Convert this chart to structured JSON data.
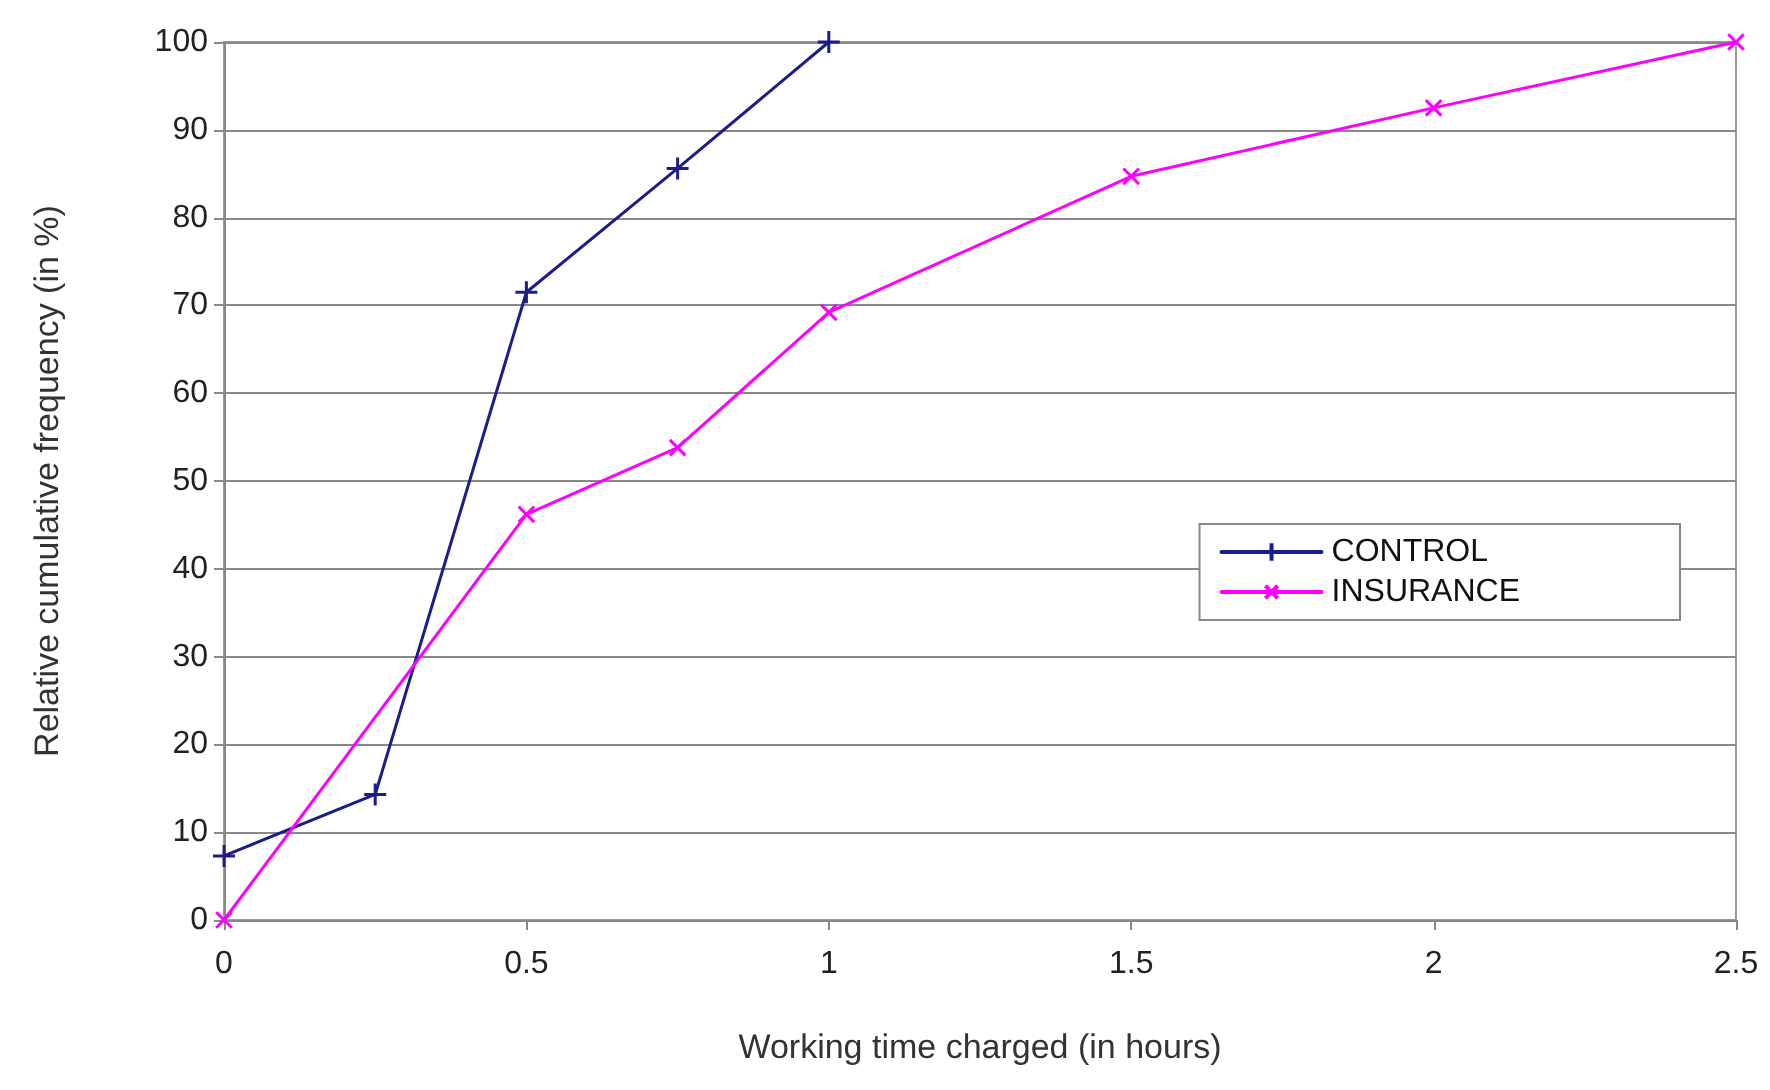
{
  "chart_data": {
    "type": "line",
    "xlabel": "Working time charged (in hours)",
    "ylabel": "Relative cumulative frequency (in %)",
    "xlim": [
      0,
      2.5
    ],
    "xticks": [
      0,
      0.5,
      1,
      1.5,
      2,
      2.5
    ],
    "ylim": [
      0,
      100
    ],
    "yticks": [
      0,
      10,
      20,
      30,
      40,
      50,
      60,
      70,
      80,
      90,
      100
    ],
    "grid": "y",
    "legend": "right",
    "marker": "cross",
    "line_style": "solid",
    "series": [
      {
        "name": "CONTROL",
        "color": "#1c1c8a",
        "x": [
          0,
          0.25,
          0.5,
          0.75,
          1
        ],
        "values": [
          7.3,
          14.3,
          71.5,
          85.6,
          100
        ]
      },
      {
        "name": "INSURANCE",
        "color": "#ff00ff",
        "x": [
          0,
          0.5,
          0.75,
          1,
          1.5,
          2,
          2.5
        ],
        "values": [
          0,
          46.2,
          53.8,
          69.2,
          84.7,
          92.5,
          100
        ]
      }
    ]
  }
}
